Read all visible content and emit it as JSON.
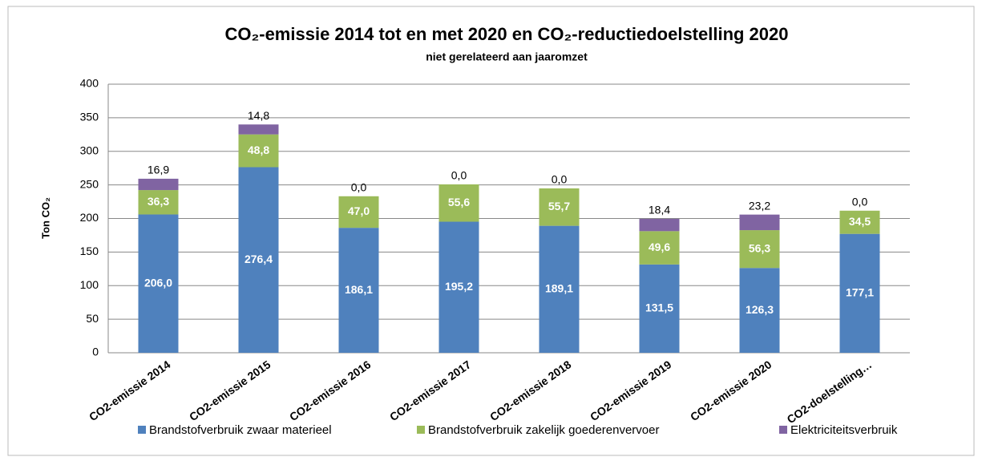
{
  "chart_data": {
    "type": "stacked_bar",
    "title": "CO₂-emissie 2014 tot en met 2020 en CO₂-reductiedoelstelling 2020",
    "subtitle": "niet gerelateerd aan jaaromzet",
    "y_label": "Ton CO₂",
    "categories": [
      "CO2-emissie 2014",
      "CO2-emissie 2015",
      "CO2-emissie 2016",
      "CO2-emissie 2017",
      "CO2-emissie 2018",
      "CO2-emissie 2019",
      "CO2-emissie 2020",
      "CO2-doelstelling…"
    ],
    "series": [
      {
        "name": "Brandstofverbruik zwaar materieel",
        "color": "#4f81bd",
        "values": [
          206.0,
          276.4,
          186.1,
          195.2,
          189.1,
          131.5,
          126.3,
          177.1
        ],
        "value_labels": [
          "206,0",
          "276,4",
          "186,1",
          "195,2",
          "189,1",
          "131,5",
          "126,3",
          "177,1"
        ]
      },
      {
        "name": "Brandstofverbruik zakelijk goederenvervoer",
        "color": "#9bbb59",
        "values": [
          36.3,
          48.8,
          47.0,
          55.6,
          55.7,
          49.6,
          56.3,
          34.5
        ],
        "value_labels": [
          "36,3",
          "48,8",
          "47,0",
          "55,6",
          "55,7",
          "49,6",
          "56,3",
          "34,5"
        ]
      },
      {
        "name": "Elektriciteitsverbruik",
        "color": "#8064a2",
        "values": [
          16.9,
          14.8,
          0.0,
          0.0,
          0.0,
          18.4,
          23.2,
          0.0
        ],
        "value_labels": [
          "16,9",
          "14,8",
          "0,0",
          "0,0",
          "0,0",
          "18,4",
          "23,2",
          "0,0"
        ]
      }
    ],
    "ylim": [
      0,
      400
    ],
    "yticks": [
      0,
      50,
      100,
      150,
      200,
      250,
      300,
      350,
      400
    ],
    "grid": true,
    "legend": "bottom"
  }
}
